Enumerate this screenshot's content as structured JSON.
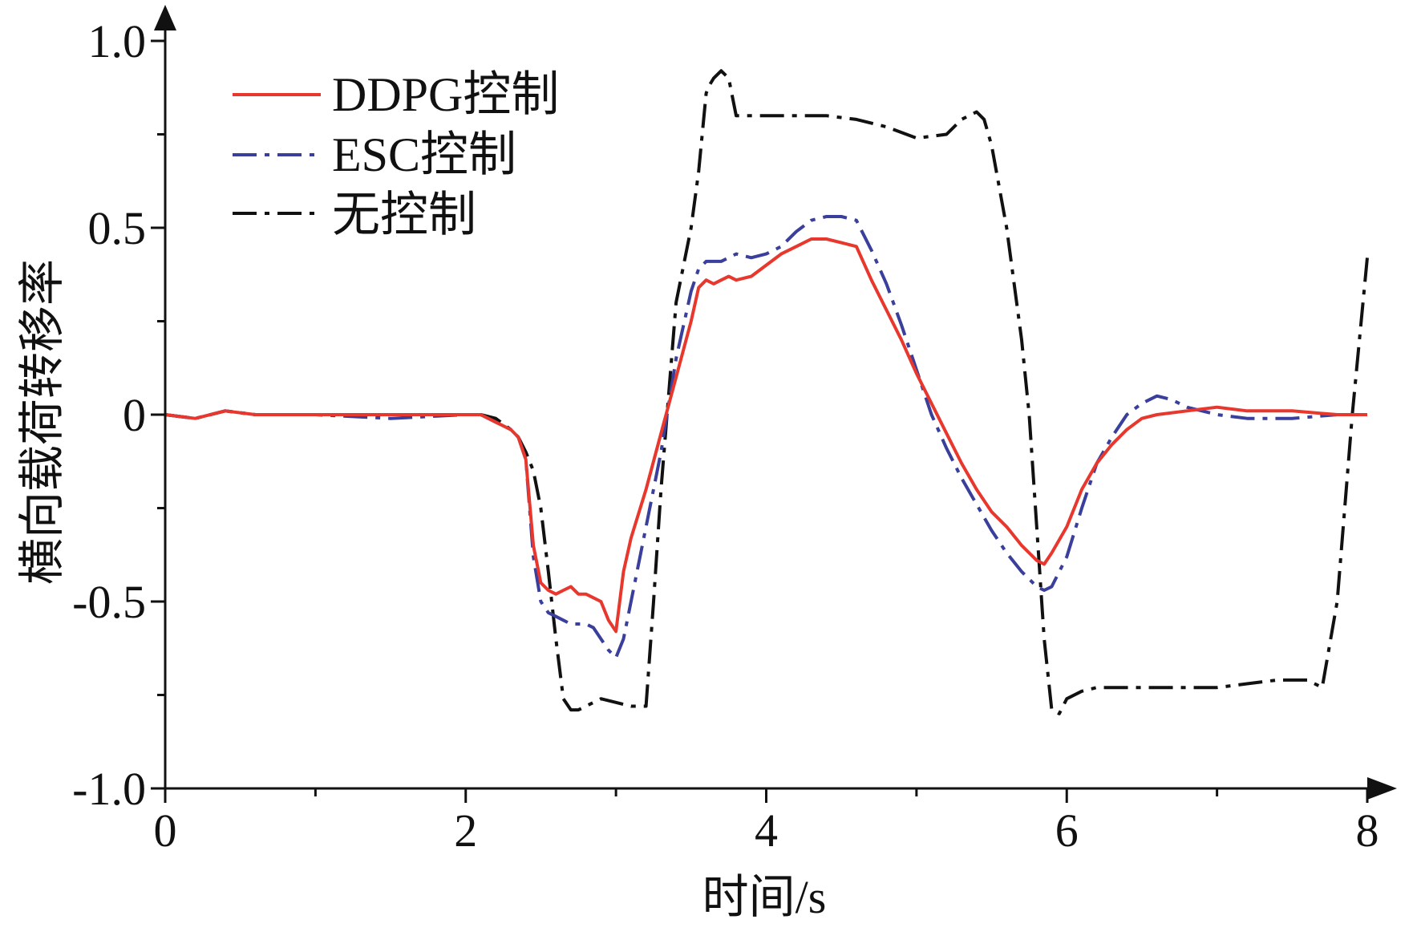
{
  "chart_data": {
    "type": "line",
    "title": "",
    "xlabel": "时间/s",
    "ylabel": "横向载荷转移率",
    "xlim": [
      0,
      8
    ],
    "ylim": [
      -1.0,
      1.0
    ],
    "x_ticks": [
      0,
      2,
      4,
      6,
      8
    ],
    "x_tick_labels": [
      "0",
      "2",
      "4",
      "6",
      "8"
    ],
    "y_ticks": [
      -1.0,
      -0.5,
      0,
      0.5,
      1.0
    ],
    "y_tick_labels": [
      "-1.0",
      "-0.5",
      "0",
      "0.5",
      "1.0"
    ],
    "grid": false,
    "legend_position": "top-left",
    "series": [
      {
        "name": "DDPG控制",
        "color": "#e8372d",
        "dash": "solid",
        "x": [
          0,
          0.2,
          0.4,
          0.6,
          1.0,
          1.5,
          2.0,
          2.1,
          2.2,
          2.3,
          2.35,
          2.4,
          2.45,
          2.5,
          2.55,
          2.6,
          2.65,
          2.7,
          2.75,
          2.8,
          2.85,
          2.9,
          2.95,
          3.0,
          3.05,
          3.1,
          3.2,
          3.3,
          3.4,
          3.5,
          3.55,
          3.6,
          3.65,
          3.7,
          3.75,
          3.8,
          3.9,
          4.0,
          4.1,
          4.2,
          4.3,
          4.4,
          4.5,
          4.6,
          4.7,
          4.8,
          4.9,
          5.0,
          5.1,
          5.2,
          5.3,
          5.4,
          5.5,
          5.6,
          5.7,
          5.8,
          5.85,
          5.9,
          6.0,
          6.1,
          6.2,
          6.3,
          6.4,
          6.5,
          6.6,
          6.8,
          7.0,
          7.2,
          7.5,
          7.8,
          8.0
        ],
        "y": [
          0,
          -0.01,
          0.01,
          0,
          0,
          0,
          0,
          0,
          -0.02,
          -0.04,
          -0.06,
          -0.12,
          -0.35,
          -0.45,
          -0.47,
          -0.48,
          -0.47,
          -0.46,
          -0.48,
          -0.48,
          -0.49,
          -0.5,
          -0.55,
          -0.58,
          -0.42,
          -0.33,
          -0.2,
          -0.05,
          0.1,
          0.25,
          0.34,
          0.36,
          0.35,
          0.36,
          0.37,
          0.36,
          0.37,
          0.4,
          0.43,
          0.45,
          0.47,
          0.47,
          0.46,
          0.45,
          0.36,
          0.28,
          0.2,
          0.11,
          0.03,
          -0.05,
          -0.13,
          -0.2,
          -0.26,
          -0.3,
          -0.35,
          -0.39,
          -0.4,
          -0.37,
          -0.3,
          -0.2,
          -0.13,
          -0.08,
          -0.04,
          -0.01,
          0,
          0.01,
          0.02,
          0.01,
          0.01,
          0,
          0
        ]
      },
      {
        "name": "ESC控制",
        "color": "#3a3f9c",
        "dash": "dashdot",
        "x": [
          0,
          0.2,
          0.4,
          0.6,
          1.0,
          1.5,
          2.0,
          2.1,
          2.2,
          2.3,
          2.35,
          2.4,
          2.45,
          2.5,
          2.55,
          2.6,
          2.65,
          2.7,
          2.75,
          2.8,
          2.85,
          2.9,
          2.95,
          3.0,
          3.05,
          3.1,
          3.2,
          3.3,
          3.4,
          3.5,
          3.55,
          3.6,
          3.65,
          3.7,
          3.75,
          3.8,
          3.9,
          4.0,
          4.1,
          4.2,
          4.3,
          4.4,
          4.5,
          4.6,
          4.7,
          4.8,
          4.9,
          5.0,
          5.1,
          5.2,
          5.3,
          5.4,
          5.5,
          5.6,
          5.7,
          5.8,
          5.85,
          5.9,
          6.0,
          6.1,
          6.2,
          6.3,
          6.4,
          6.5,
          6.6,
          6.7,
          6.8,
          7.0,
          7.2,
          7.5,
          7.8,
          8.0
        ],
        "y": [
          0,
          -0.01,
          0.01,
          0,
          0,
          -0.01,
          0,
          0,
          -0.02,
          -0.04,
          -0.06,
          -0.12,
          -0.38,
          -0.5,
          -0.53,
          -0.54,
          -0.55,
          -0.56,
          -0.56,
          -0.56,
          -0.57,
          -0.6,
          -0.63,
          -0.65,
          -0.6,
          -0.5,
          -0.3,
          -0.1,
          0.15,
          0.33,
          0.39,
          0.41,
          0.41,
          0.41,
          0.42,
          0.43,
          0.42,
          0.43,
          0.45,
          0.49,
          0.52,
          0.53,
          0.53,
          0.52,
          0.44,
          0.35,
          0.24,
          0.12,
          0.0,
          -0.09,
          -0.17,
          -0.24,
          -0.31,
          -0.37,
          -0.42,
          -0.46,
          -0.47,
          -0.46,
          -0.38,
          -0.25,
          -0.13,
          -0.06,
          0.0,
          0.03,
          0.05,
          0.04,
          0.02,
          0.0,
          -0.01,
          -0.01,
          0,
          0
        ]
      },
      {
        "name": "无控制",
        "color": "#111111",
        "dash": "dashdot",
        "x": [
          0,
          0.2,
          0.4,
          0.6,
          1.0,
          1.5,
          2.0,
          2.1,
          2.2,
          2.3,
          2.35,
          2.4,
          2.45,
          2.5,
          2.55,
          2.6,
          2.65,
          2.7,
          2.75,
          2.8,
          2.9,
          3.0,
          3.1,
          3.2,
          3.25,
          3.3,
          3.4,
          3.5,
          3.55,
          3.6,
          3.62,
          3.65,
          3.7,
          3.75,
          3.8,
          3.9,
          4.0,
          4.2,
          4.4,
          4.6,
          4.8,
          5.0,
          5.2,
          5.3,
          5.4,
          5.45,
          5.5,
          5.6,
          5.7,
          5.75,
          5.8,
          5.85,
          5.9,
          5.95,
          6.0,
          6.1,
          6.2,
          6.4,
          6.6,
          6.8,
          7.0,
          7.2,
          7.4,
          7.6,
          7.65,
          7.7,
          7.8,
          7.9,
          8.0
        ],
        "y": [
          0,
          -0.01,
          0.01,
          0,
          0,
          0,
          0,
          0,
          -0.01,
          -0.04,
          -0.06,
          -0.1,
          -0.15,
          -0.25,
          -0.42,
          -0.6,
          -0.76,
          -0.79,
          -0.79,
          -0.78,
          -0.76,
          -0.77,
          -0.78,
          -0.78,
          -0.5,
          -0.2,
          0.3,
          0.5,
          0.65,
          0.86,
          0.88,
          0.9,
          0.92,
          0.9,
          0.8,
          0.8,
          0.8,
          0.8,
          0.8,
          0.79,
          0.77,
          0.74,
          0.75,
          0.79,
          0.81,
          0.79,
          0.72,
          0.5,
          0.2,
          0.0,
          -0.3,
          -0.6,
          -0.79,
          -0.8,
          -0.76,
          -0.74,
          -0.73,
          -0.73,
          -0.73,
          -0.73,
          -0.73,
          -0.72,
          -0.71,
          -0.71,
          -0.72,
          -0.73,
          -0.5,
          0.0,
          0.42
        ]
      }
    ]
  }
}
